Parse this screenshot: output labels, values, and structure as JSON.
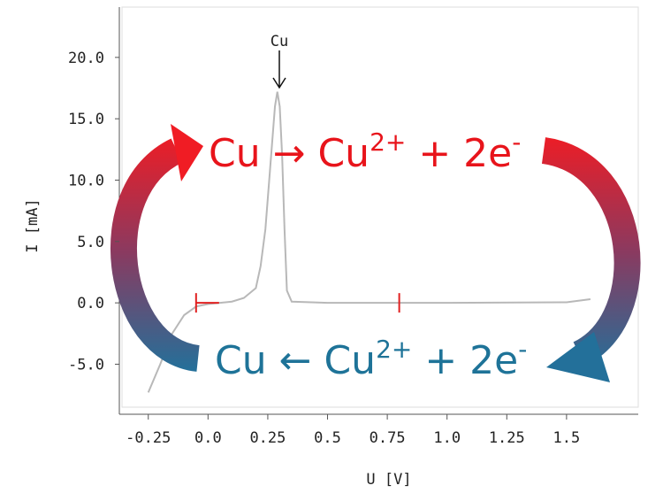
{
  "chart_data": {
    "type": "line",
    "x_label": "U [V]",
    "y_label": "I [mA]",
    "xlim": [
      -0.36,
      1.8
    ],
    "ylim": [
      -8.5,
      24.1
    ],
    "xticks": [
      -0.25,
      {
        "value": 0,
        "label": "0.0"
      },
      0.25,
      0.5,
      0.75,
      {
        "value": 1,
        "label": "1.0"
      },
      1.25,
      1.5
    ],
    "yticks": [
      {
        "value": 20,
        "label": "20.0"
      },
      {
        "value": 15,
        "label": "15.0"
      },
      {
        "value": 10,
        "label": "10.0"
      },
      {
        "value": 5,
        "label": "5.0"
      },
      {
        "value": 0,
        "label": "0.0"
      },
      {
        "value": -5,
        "label": "-5.0"
      }
    ],
    "x": [
      -0.25,
      -0.2,
      -0.15,
      -0.1,
      -0.05,
      0,
      0.05,
      0.1,
      0.15,
      0.2,
      0.22,
      0.24,
      0.26,
      0.28,
      0.29,
      0.3,
      0.31,
      0.32,
      0.33,
      0.35,
      0.5,
      1.0,
      1.5,
      1.6
    ],
    "series": [
      {
        "color": "#b8b8b8",
        "values": [
          -7.3,
          -5,
          -2.5,
          -1,
          -0.3,
          -0.1,
          0,
          0.1,
          0.4,
          1.2,
          3,
          6,
          11,
          16,
          17.2,
          16,
          12,
          6,
          1,
          0.1,
          0,
          0,
          0.05,
          0.3
        ]
      }
    ],
    "markers": {
      "color": "#e02020",
      "x": [
        -0.05,
        0.8
      ]
    },
    "peak_label": "Cu",
    "oxidation": [
      "Cu → Cu",
      "2+",
      " + 2e",
      "-"
    ],
    "reduction": [
      "Cu ← Cu",
      "2+",
      " + 2e",
      "-"
    ]
  }
}
